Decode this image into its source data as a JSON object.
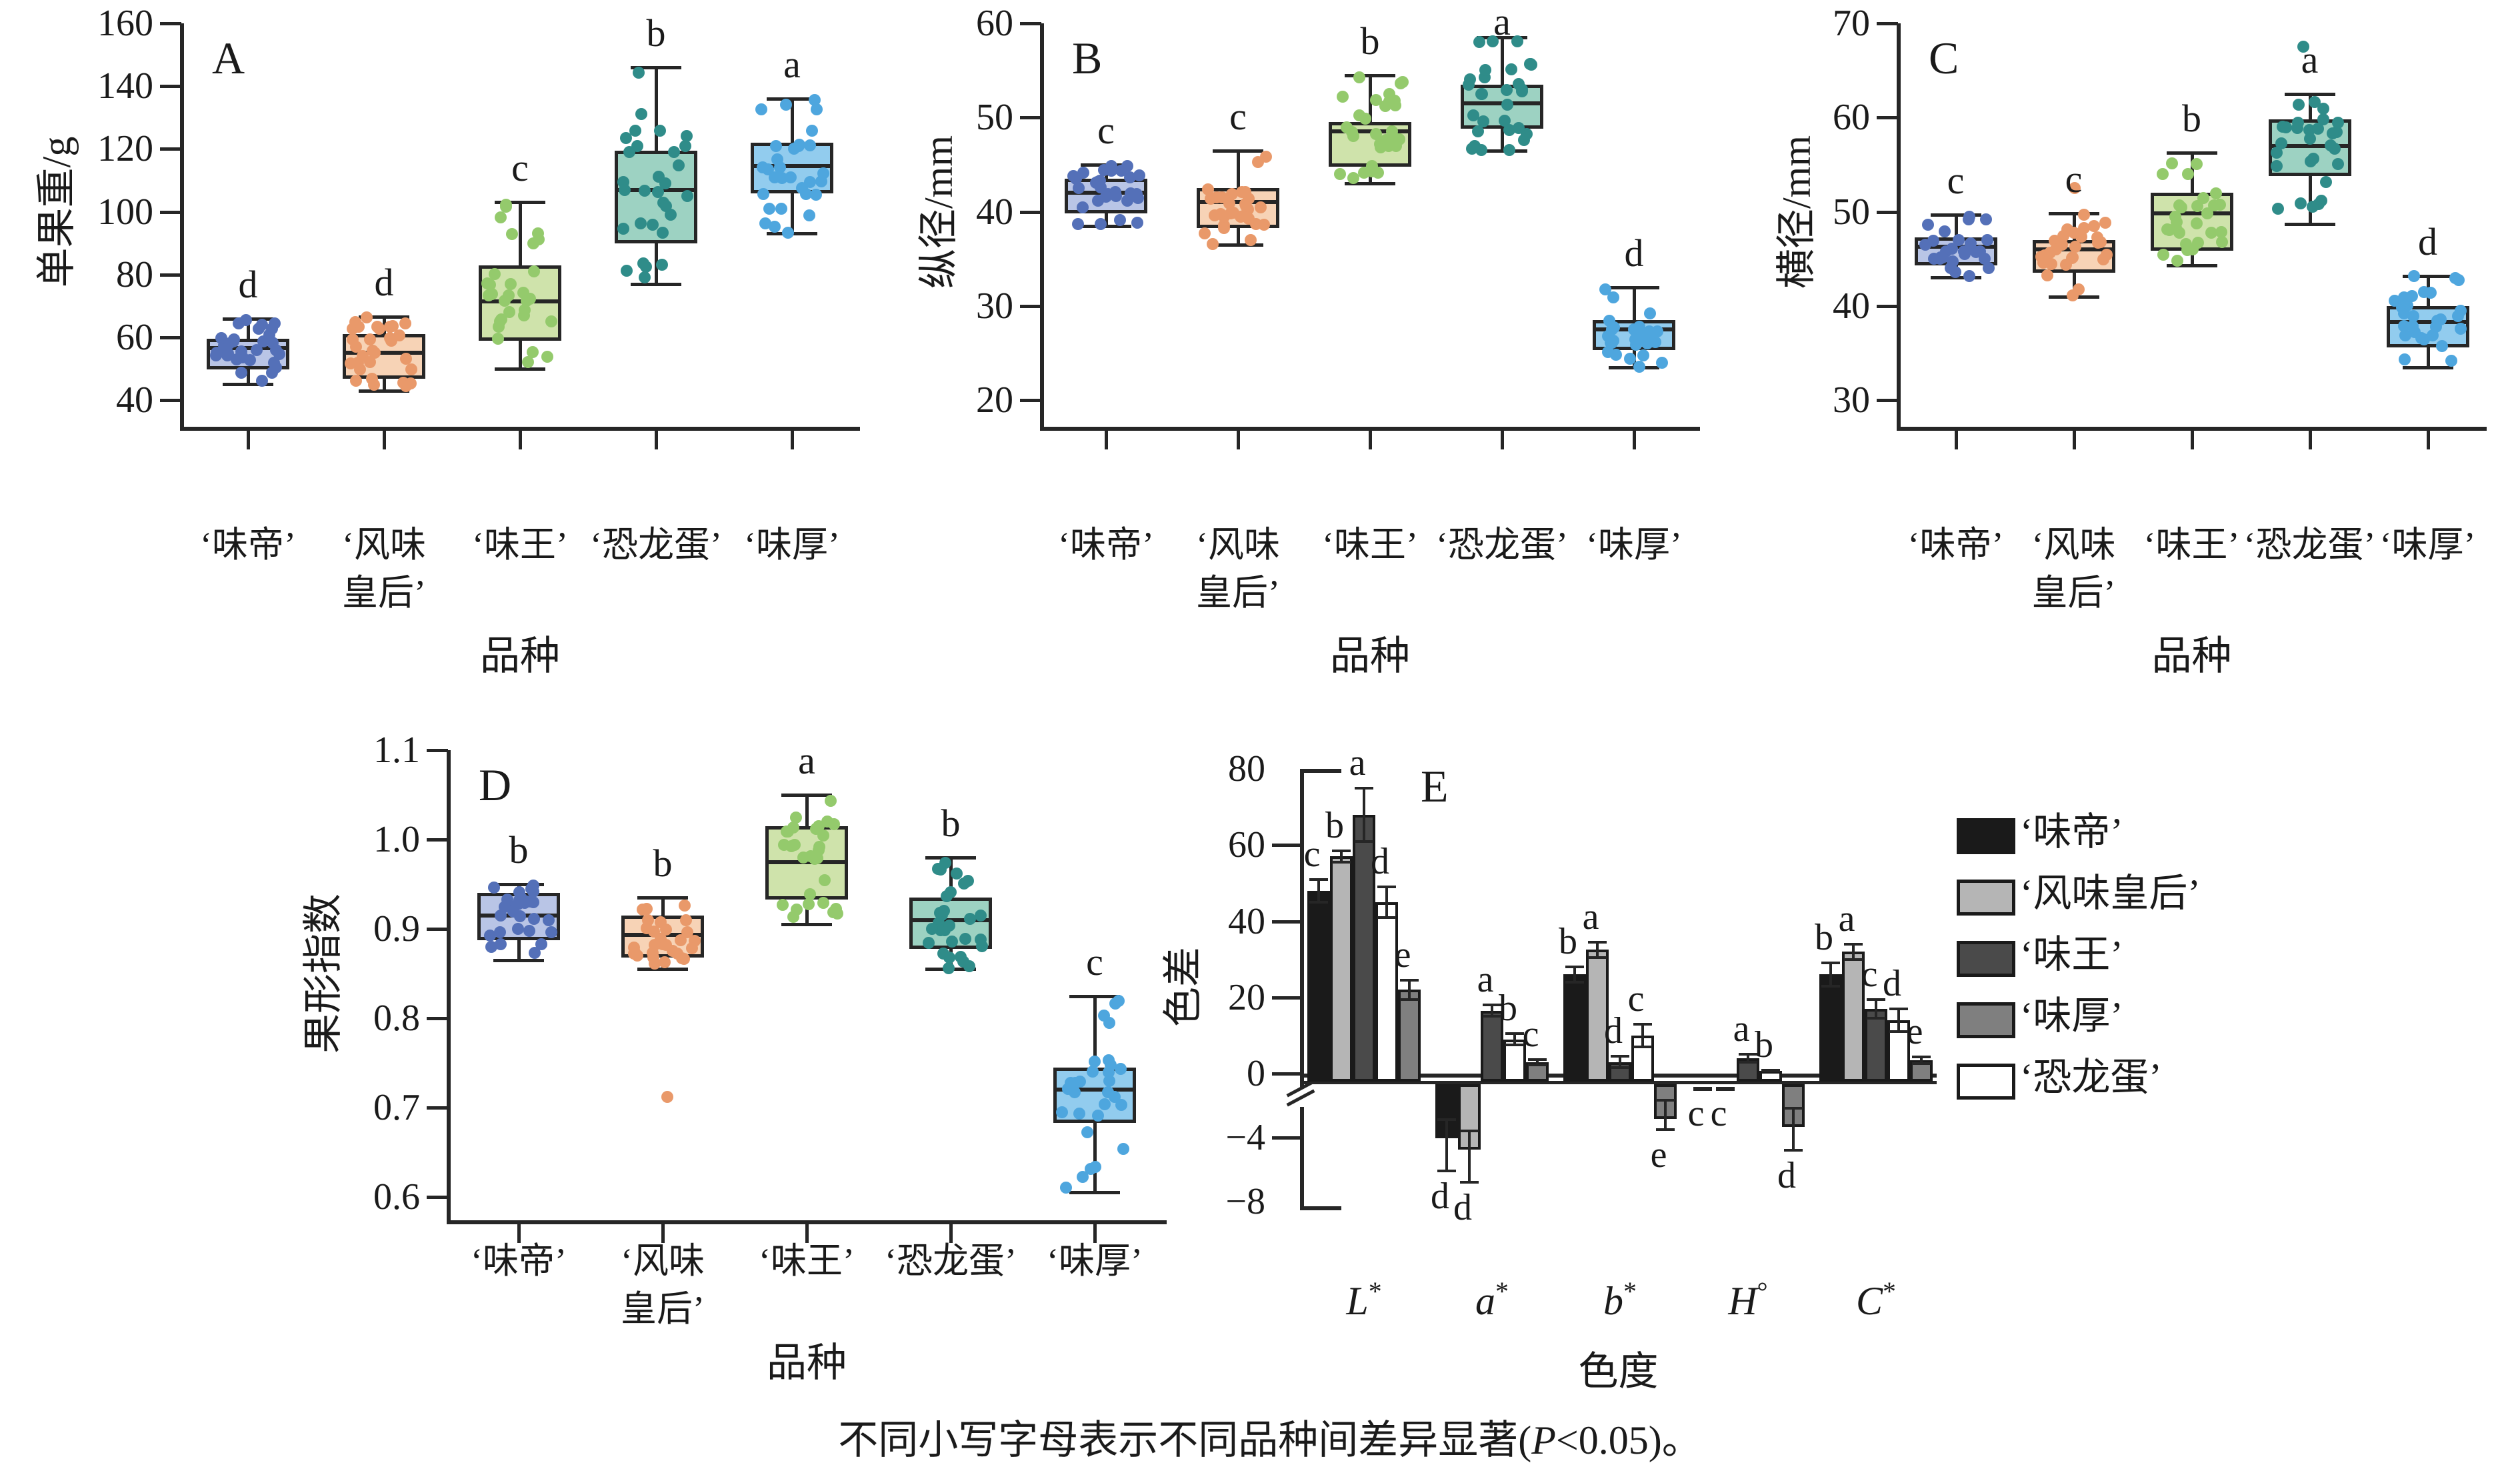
{
  "figure": {
    "background": "#ffffff",
    "axis_color": "#262626",
    "text_color": "#1a1a1a",
    "caption": {
      "prefix": "不同小写字母表示不同品种间差异显著(",
      "p_italic": "P",
      "suffix": "<0.05)。"
    }
  },
  "cultivars": [
    {
      "name": "‘味帝’",
      "label_lines": [
        "‘味帝’"
      ],
      "box_fill": "#b9c5e6",
      "dot_color": "#5470b8",
      "bar_fill": "#1a1a1a"
    },
    {
      "name": "‘风味皇后’",
      "label_lines": [
        "‘风味",
        "皇后’"
      ],
      "box_fill": "#f7d3b6",
      "dot_color": "#e9996a",
      "bar_fill": "#b5b5b5"
    },
    {
      "name": "‘味王’",
      "label_lines": [
        "‘味王’"
      ],
      "box_fill": "#cfe3ab",
      "dot_color": "#94ca6c",
      "bar_fill": "#4a4a4a"
    },
    {
      "name": "‘恐龙蛋’",
      "label_lines": [
        "‘恐龙蛋’"
      ],
      "box_fill": "#9dd2c2",
      "dot_color": "#2f8c89",
      "bar_fill": "#ffffff"
    },
    {
      "name": "‘味厚’",
      "label_lines": [
        "‘味厚’"
      ],
      "box_fill": "#92ccee",
      "dot_color": "#4ea6de",
      "bar_fill": "#7f7f7f"
    }
  ],
  "legend": {
    "item_order": [
      0,
      1,
      2,
      4,
      3
    ]
  },
  "chart_data": [
    {
      "panel": "A",
      "type": "box",
      "ylabel": "单果重/g",
      "xlabel": "品种",
      "ylim": [
        40,
        160
      ],
      "yticks": [
        40,
        60,
        80,
        100,
        120,
        140,
        160
      ],
      "ytick_decimals": 0,
      "categories": [
        "‘味帝’",
        "‘风味皇后’",
        "‘味王’",
        "‘恐龙蛋’",
        "‘味厚’"
      ],
      "boxes": [
        {
          "cultivar": 0,
          "letter": "d",
          "whisker_low": 45,
          "q1": 52,
          "median": 56.5,
          "q3": 59.5,
          "whisker_high": 66,
          "outliers": [],
          "n_points": 30
        },
        {
          "cultivar": 1,
          "letter": "d",
          "whisker_low": 43,
          "q1": 49,
          "median": 55,
          "q3": 61,
          "whisker_high": 66.5,
          "outliers": [],
          "n_points": 30
        },
        {
          "cultivar": 2,
          "letter": "c",
          "whisker_low": 50,
          "q1": 61,
          "median": 71.5,
          "q3": 83,
          "whisker_high": 103,
          "outliers": [],
          "n_points": 30
        },
        {
          "cultivar": 3,
          "letter": "b",
          "whisker_low": 77,
          "q1": 92,
          "median": 107,
          "q3": 119.5,
          "whisker_high": 146,
          "outliers": [],
          "n_points": 30
        },
        {
          "cultivar": 4,
          "letter": "a",
          "whisker_low": 93,
          "q1": 108,
          "median": 114.5,
          "q3": 122,
          "whisker_high": 136,
          "outliers": [],
          "n_points": 30
        }
      ]
    },
    {
      "panel": "B",
      "type": "box",
      "ylabel": "纵径/mm",
      "xlabel": "品种",
      "ylim": [
        20,
        60
      ],
      "yticks": [
        20,
        30,
        40,
        50,
        60
      ],
      "ytick_decimals": 0,
      "categories": [
        "‘味帝’",
        "‘风味皇后’",
        "‘味王’",
        "‘恐龙蛋’",
        "‘味厚’"
      ],
      "boxes": [
        {
          "cultivar": 0,
          "letter": "c",
          "whisker_low": 38.5,
          "q1": 40.5,
          "median": 42,
          "q3": 43.5,
          "whisker_high": 45,
          "outliers": [],
          "n_points": 30
        },
        {
          "cultivar": 1,
          "letter": "c",
          "whisker_low": 36.5,
          "q1": 39,
          "median": 41,
          "q3": 42.5,
          "whisker_high": 46.5,
          "outliers": [],
          "n_points": 30
        },
        {
          "cultivar": 2,
          "letter": "b",
          "whisker_low": 43,
          "q1": 45.5,
          "median": 48.5,
          "q3": 49.5,
          "whisker_high": 54.5,
          "outliers": [],
          "n_points": 30
        },
        {
          "cultivar": 3,
          "letter": "a",
          "whisker_low": 46.5,
          "q1": 49.5,
          "median": 51.5,
          "q3": 53.5,
          "whisker_high": 58.5,
          "outliers": [],
          "n_points": 30
        },
        {
          "cultivar": 4,
          "letter": "d",
          "whisker_low": 23.5,
          "q1": 26,
          "median": 27.5,
          "q3": 28.5,
          "whisker_high": 32,
          "outliers": [],
          "n_points": 28
        }
      ]
    },
    {
      "panel": "C",
      "type": "box",
      "ylabel": "横径/mm",
      "xlabel": "品种",
      "ylim": [
        30,
        70
      ],
      "yticks": [
        30,
        40,
        50,
        60,
        70
      ],
      "ytick_decimals": 0,
      "categories": [
        "‘味帝’",
        "‘风味皇后’",
        "‘味王’",
        "‘恐龙蛋’",
        "‘味厚’"
      ],
      "boxes": [
        {
          "cultivar": 0,
          "letter": "c",
          "whisker_low": 43,
          "q1": 45,
          "median": 46.3,
          "q3": 47.3,
          "whisker_high": 49.7,
          "outliers": [],
          "n_points": 28
        },
        {
          "cultivar": 1,
          "letter": "c",
          "whisker_low": 41,
          "q1": 44.2,
          "median": 46,
          "q3": 47,
          "whisker_high": 49.8,
          "outliers": [
            52.5
          ],
          "n_points": 28
        },
        {
          "cultivar": 2,
          "letter": "b",
          "whisker_low": 44.3,
          "q1": 46.6,
          "median": 49.8,
          "q3": 52,
          "whisker_high": 56.3,
          "outliers": [],
          "n_points": 28
        },
        {
          "cultivar": 3,
          "letter": "a",
          "whisker_low": 48.7,
          "q1": 54.5,
          "median": 57,
          "q3": 59.8,
          "whisker_high": 62.5,
          "outliers": [
            67.5
          ],
          "n_points": 28
        },
        {
          "cultivar": 4,
          "letter": "d",
          "whisker_low": 33.5,
          "q1": 36.3,
          "median": 38.3,
          "q3": 40,
          "whisker_high": 43.2,
          "outliers": [],
          "n_points": 28
        }
      ]
    },
    {
      "panel": "D",
      "type": "box",
      "ylabel": "果形指数",
      "xlabel": "品种",
      "ylim": [
        0.6,
        1.1
      ],
      "yticks": [
        0.6,
        0.7,
        0.8,
        0.9,
        1.0,
        1.1
      ],
      "ytick_decimals": 1,
      "categories": [
        "‘味帝’",
        "‘风味皇后’",
        "‘味王’",
        "‘恐龙蛋’",
        "‘味厚’"
      ],
      "boxes": [
        {
          "cultivar": 0,
          "letter": "b",
          "whisker_low": 0.865,
          "q1": 0.895,
          "median": 0.915,
          "q3": 0.94,
          "whisker_high": 0.95,
          "outliers": [],
          "n_points": 30
        },
        {
          "cultivar": 1,
          "letter": "b",
          "whisker_low": 0.855,
          "q1": 0.875,
          "median": 0.893,
          "q3": 0.915,
          "whisker_high": 0.935,
          "outliers": [
            0.712
          ],
          "n_points": 29
        },
        {
          "cultivar": 2,
          "letter": "a",
          "whisker_low": 0.905,
          "q1": 0.94,
          "median": 0.975,
          "q3": 1.015,
          "whisker_high": 1.05,
          "outliers": [],
          "n_points": 29
        },
        {
          "cultivar": 3,
          "letter": "b",
          "whisker_low": 0.855,
          "q1": 0.885,
          "median": 0.91,
          "q3": 0.935,
          "whisker_high": 0.98,
          "outliers": [],
          "n_points": 29
        },
        {
          "cultivar": 4,
          "letter": "c",
          "whisker_low": 0.605,
          "q1": 0.69,
          "median": 0.72,
          "q3": 0.745,
          "whisker_high": 0.825,
          "outliers": [],
          "n_points": 29
        }
      ]
    },
    {
      "panel": "E",
      "type": "bar",
      "ylabel": "色差",
      "xlabel": "色度",
      "categories": [
        "L*",
        "a*",
        "b*",
        "H°",
        "C*"
      ],
      "ylim_positive": [
        0,
        80
      ],
      "yticks_positive": [
        0,
        20,
        40,
        60,
        80
      ],
      "yticks_negative": [
        -4,
        -8
      ],
      "axis_break": true,
      "series": [
        {
          "cultivar": 0,
          "values": [
            48,
            -3.7,
            26,
            -0.3,
            26
          ],
          "errors": [
            3,
            2.4,
            2,
            0.2,
            3
          ],
          "letters": [
            "c",
            "d",
            "b",
            "c",
            "b"
          ]
        },
        {
          "cultivar": 1,
          "values": [
            57,
            -4.4,
            32.5,
            -0.3,
            32
          ],
          "errors": [
            1.5,
            2.4,
            2,
            0.2,
            2
          ],
          "letters": [
            "b",
            "d",
            "a",
            "c",
            "a"
          ]
        },
        {
          "cultivar": 2,
          "values": [
            68,
            16.5,
            3,
            4,
            17
          ],
          "errors": [
            7,
            1.5,
            1.5,
            1,
            2.5
          ],
          "letters": [
            "a",
            "a",
            "d",
            "a",
            "c"
          ]
        },
        {
          "cultivar": 3,
          "values": [
            45,
            9,
            10,
            0.7,
            14
          ],
          "errors": [
            4,
            1.5,
            3,
            0.25,
            3
          ],
          "letters": [
            "d",
            "b",
            "c",
            "b",
            "d"
          ]
        },
        {
          "cultivar": 4,
          "values": [
            22,
            3,
            -2.5,
            -3,
            3.5
          ],
          "errors": [
            2.5,
            0.7,
            1,
            1.8,
            0.8
          ],
          "letters": [
            "e",
            "c",
            "e",
            "d",
            "e"
          ]
        }
      ]
    }
  ]
}
